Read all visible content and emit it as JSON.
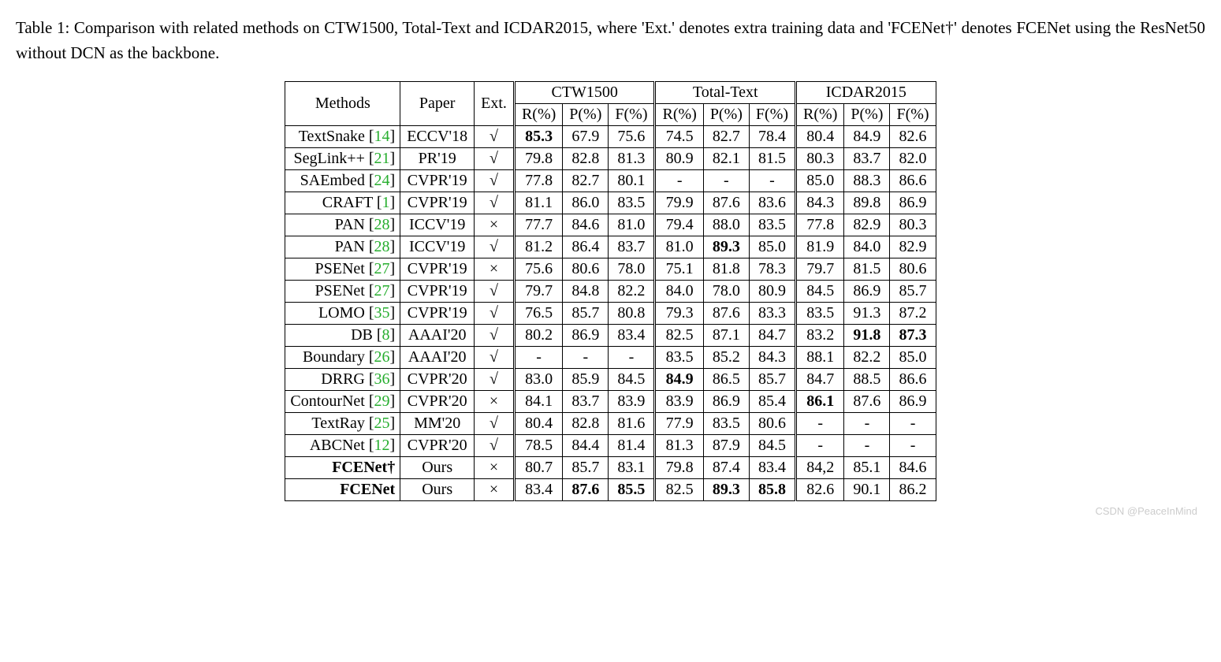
{
  "caption": "Table 1: Comparison with related methods on CTW1500, Total-Text and ICDAR2015, where 'Ext.' denotes extra training data and 'FCENet†' denotes FCENet using the ResNet50 without DCN as the backbone.",
  "watermark": "CSDN @PeaceInMind",
  "headers": {
    "methods": "Methods",
    "paper": "Paper",
    "ext": "Ext.",
    "datasets": [
      "CTW1500",
      "Total-Text",
      "ICDAR2015"
    ],
    "metrics": [
      "R(%)",
      "P(%)",
      "F(%)"
    ]
  },
  "symbols": {
    "check": "√",
    "cross": "×",
    "dash": "-"
  },
  "rows": [
    {
      "method": "TextSnake",
      "ref": "14",
      "paper": "ECCV'18",
      "ext": "check",
      "ctw": [
        {
          "v": "85.3",
          "b": true
        },
        {
          "v": "67.9"
        },
        {
          "v": "75.6"
        }
      ],
      "tt": [
        {
          "v": "74.5"
        },
        {
          "v": "82.7"
        },
        {
          "v": "78.4"
        }
      ],
      "ic": [
        {
          "v": "80.4"
        },
        {
          "v": "84.9"
        },
        {
          "v": "82.6"
        }
      ]
    },
    {
      "method": "SegLink++",
      "ref": "21",
      "paper": "PR'19",
      "ext": "check",
      "ctw": [
        {
          "v": "79.8"
        },
        {
          "v": "82.8"
        },
        {
          "v": "81.3"
        }
      ],
      "tt": [
        {
          "v": "80.9"
        },
        {
          "v": "82.1"
        },
        {
          "v": "81.5"
        }
      ],
      "ic": [
        {
          "v": "80.3"
        },
        {
          "v": "83.7"
        },
        {
          "v": "82.0"
        }
      ]
    },
    {
      "method": "SAEmbed",
      "ref": "24",
      "paper": "CVPR'19",
      "ext": "check",
      "ctw": [
        {
          "v": "77.8"
        },
        {
          "v": "82.7"
        },
        {
          "v": "80.1"
        }
      ],
      "tt": [
        {
          "v": "-"
        },
        {
          "v": "-"
        },
        {
          "v": "-"
        }
      ],
      "ic": [
        {
          "v": "85.0"
        },
        {
          "v": "88.3"
        },
        {
          "v": "86.6"
        }
      ]
    },
    {
      "method": "CRAFT",
      "ref": "1",
      "paper": "CVPR'19",
      "ext": "check",
      "ctw": [
        {
          "v": "81.1"
        },
        {
          "v": "86.0"
        },
        {
          "v": "83.5"
        }
      ],
      "tt": [
        {
          "v": "79.9"
        },
        {
          "v": "87.6"
        },
        {
          "v": "83.6"
        }
      ],
      "ic": [
        {
          "v": "84.3"
        },
        {
          "v": "89.8"
        },
        {
          "v": "86.9"
        }
      ]
    },
    {
      "method": "PAN",
      "ref": "28",
      "paper": "ICCV'19",
      "ext": "cross",
      "ctw": [
        {
          "v": "77.7"
        },
        {
          "v": "84.6"
        },
        {
          "v": "81.0"
        }
      ],
      "tt": [
        {
          "v": "79.4"
        },
        {
          "v": "88.0"
        },
        {
          "v": "83.5"
        }
      ],
      "ic": [
        {
          "v": "77.8"
        },
        {
          "v": "82.9"
        },
        {
          "v": "80.3"
        }
      ]
    },
    {
      "method": "PAN",
      "ref": "28",
      "paper": "ICCV'19",
      "ext": "check",
      "ctw": [
        {
          "v": "81.2"
        },
        {
          "v": "86.4"
        },
        {
          "v": "83.7"
        }
      ],
      "tt": [
        {
          "v": "81.0"
        },
        {
          "v": "89.3",
          "b": true
        },
        {
          "v": "85.0"
        }
      ],
      "ic": [
        {
          "v": "81.9"
        },
        {
          "v": "84.0"
        },
        {
          "v": "82.9"
        }
      ]
    },
    {
      "method": "PSENet",
      "ref": "27",
      "paper": "CVPR'19",
      "ext": "cross",
      "ctw": [
        {
          "v": "75.6"
        },
        {
          "v": "80.6"
        },
        {
          "v": "78.0"
        }
      ],
      "tt": [
        {
          "v": "75.1"
        },
        {
          "v": "81.8"
        },
        {
          "v": "78.3"
        }
      ],
      "ic": [
        {
          "v": "79.7"
        },
        {
          "v": "81.5"
        },
        {
          "v": "80.6"
        }
      ]
    },
    {
      "method": "PSENet",
      "ref": "27",
      "paper": "CVPR'19",
      "ext": "check",
      "ctw": [
        {
          "v": "79.7"
        },
        {
          "v": "84.8"
        },
        {
          "v": "82.2"
        }
      ],
      "tt": [
        {
          "v": "84.0"
        },
        {
          "v": "78.0"
        },
        {
          "v": "80.9"
        }
      ],
      "ic": [
        {
          "v": "84.5"
        },
        {
          "v": "86.9"
        },
        {
          "v": "85.7"
        }
      ]
    },
    {
      "method": "LOMO",
      "ref": "35",
      "paper": "CVPR'19",
      "ext": "check",
      "ctw": [
        {
          "v": "76.5"
        },
        {
          "v": "85.7"
        },
        {
          "v": "80.8"
        }
      ],
      "tt": [
        {
          "v": "79.3"
        },
        {
          "v": "87.6"
        },
        {
          "v": "83.3"
        }
      ],
      "ic": [
        {
          "v": "83.5"
        },
        {
          "v": "91.3"
        },
        {
          "v": "87.2"
        }
      ]
    },
    {
      "method": "DB",
      "ref": "8",
      "paper": "AAAI'20",
      "ext": "check",
      "ctw": [
        {
          "v": "80.2"
        },
        {
          "v": "86.9"
        },
        {
          "v": "83.4"
        }
      ],
      "tt": [
        {
          "v": "82.5"
        },
        {
          "v": "87.1"
        },
        {
          "v": "84.7"
        }
      ],
      "ic": [
        {
          "v": "83.2"
        },
        {
          "v": "91.8",
          "b": true
        },
        {
          "v": "87.3",
          "b": true
        }
      ]
    },
    {
      "method": "Boundary",
      "ref": "26",
      "paper": "AAAI'20",
      "ext": "check",
      "ctw": [
        {
          "v": "-"
        },
        {
          "v": "-"
        },
        {
          "v": "-"
        }
      ],
      "tt": [
        {
          "v": "83.5"
        },
        {
          "v": "85.2"
        },
        {
          "v": "84.3"
        }
      ],
      "ic": [
        {
          "v": "88.1"
        },
        {
          "v": "82.2"
        },
        {
          "v": "85.0"
        }
      ]
    },
    {
      "method": "DRRG",
      "ref": "36",
      "paper": "CVPR'20",
      "ext": "check",
      "ctw": [
        {
          "v": "83.0"
        },
        {
          "v": "85.9"
        },
        {
          "v": "84.5"
        }
      ],
      "tt": [
        {
          "v": "84.9",
          "b": true
        },
        {
          "v": "86.5"
        },
        {
          "v": "85.7"
        }
      ],
      "ic": [
        {
          "v": "84.7"
        },
        {
          "v": "88.5"
        },
        {
          "v": "86.6"
        }
      ]
    },
    {
      "method": "ContourNet",
      "ref": "29",
      "paper": "CVPR'20",
      "ext": "cross",
      "ctw": [
        {
          "v": "84.1"
        },
        {
          "v": "83.7"
        },
        {
          "v": "83.9"
        }
      ],
      "tt": [
        {
          "v": "83.9"
        },
        {
          "v": "86.9"
        },
        {
          "v": "85.4"
        }
      ],
      "ic": [
        {
          "v": "86.1",
          "b": true
        },
        {
          "v": "87.6"
        },
        {
          "v": "86.9"
        }
      ]
    },
    {
      "method": "TextRay",
      "ref": "25",
      "paper": "MM'20",
      "ext": "check",
      "ctw": [
        {
          "v": "80.4"
        },
        {
          "v": "82.8"
        },
        {
          "v": "81.6"
        }
      ],
      "tt": [
        {
          "v": "77.9"
        },
        {
          "v": "83.5"
        },
        {
          "v": "80.6"
        }
      ],
      "ic": [
        {
          "v": "-"
        },
        {
          "v": "-"
        },
        {
          "v": "-"
        }
      ]
    },
    {
      "method": "ABCNet",
      "ref": "12",
      "paper": "CVPR'20",
      "ext": "check",
      "ctw": [
        {
          "v": "78.5"
        },
        {
          "v": "84.4"
        },
        {
          "v": "81.4"
        }
      ],
      "tt": [
        {
          "v": "81.3"
        },
        {
          "v": "87.9"
        },
        {
          "v": "84.5"
        }
      ],
      "ic": [
        {
          "v": "-"
        },
        {
          "v": "-"
        },
        {
          "v": "-"
        }
      ]
    },
    {
      "method": "FCENet†",
      "method_bold": true,
      "paper": "Ours",
      "ext": "cross",
      "ctw": [
        {
          "v": "80.7"
        },
        {
          "v": "85.7"
        },
        {
          "v": "83.1"
        }
      ],
      "tt": [
        {
          "v": "79.8"
        },
        {
          "v": "87.4"
        },
        {
          "v": "83.4"
        }
      ],
      "ic": [
        {
          "v": "84,2"
        },
        {
          "v": "85.1"
        },
        {
          "v": "84.6"
        }
      ],
      "section_start": true
    },
    {
      "method": "FCENet",
      "method_bold": true,
      "paper": "Ours",
      "ext": "cross",
      "ctw": [
        {
          "v": "83.4"
        },
        {
          "v": "87.6",
          "b": true
        },
        {
          "v": "85.5",
          "b": true
        }
      ],
      "tt": [
        {
          "v": "82.5"
        },
        {
          "v": "89.3",
          "b": true
        },
        {
          "v": "85.8",
          "b": true
        }
      ],
      "ic": [
        {
          "v": "82.6"
        },
        {
          "v": "90.1"
        },
        {
          "v": "86.2"
        }
      ]
    }
  ]
}
